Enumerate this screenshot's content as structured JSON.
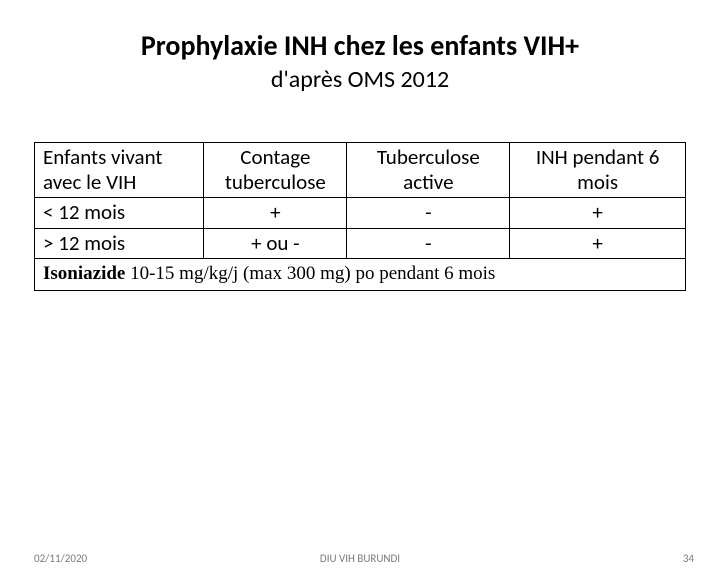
{
  "title": "Prophylaxie INH chez les enfants VIH+",
  "subtitle": "d'après OMS 2012",
  "table": {
    "headers": {
      "col1": "Enfants vivant avec le VIH",
      "col2": "Contage tuberculose",
      "col3": "Tuberculose active",
      "col4": "INH pendant 6 mois"
    },
    "rows": [
      {
        "c1": "< 12 mois",
        "c2": "+",
        "c3": "-",
        "c4": "+"
      },
      {
        "c1": "> 12 mois",
        "c2": "+ ou -",
        "c3": "-",
        "c4": "+"
      }
    ],
    "note_bold": "Isoniazide",
    "note_rest": " 10-15 mg/kg/j (max 300 mg) po pendant 6 mois"
  },
  "footer": {
    "date": "02/11/2020",
    "center": "DIU VIH BURUNDI",
    "page": "34"
  }
}
